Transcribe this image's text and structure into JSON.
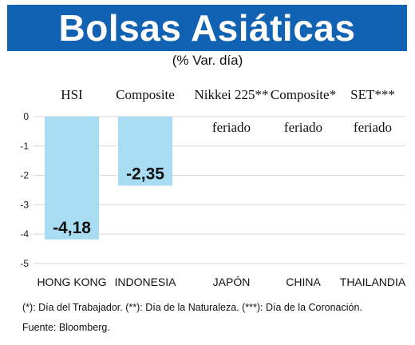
{
  "title": "Bolsas Asiáticas",
  "subtitle": "(% Var. día)",
  "chart_data": {
    "type": "bar",
    "ylim": [
      -5,
      0
    ],
    "yticks": [
      "0",
      "-1",
      "-2",
      "-3",
      "-4",
      "-5"
    ],
    "grid": true,
    "bar_color": "#a8dcf3",
    "index_names": [
      "HSI",
      "Composite",
      "Nikkei 225**",
      "Composite*",
      "SET***"
    ],
    "categories": [
      "HONG KONG",
      "INDONESIA",
      "JAPÓN",
      "CHINA",
      "THAILANDIA"
    ],
    "values": [
      -4.18,
      -2.35,
      null,
      null,
      null
    ],
    "data_labels": [
      "-4,18",
      "-2,35",
      "feriado",
      "feriado",
      "feriado"
    ]
  },
  "footnote": "(*): Día del Trabajador. (**): Día de la Naturaleza. (***): Día de la Coronación.",
  "source": "Fuente: Bloomberg."
}
